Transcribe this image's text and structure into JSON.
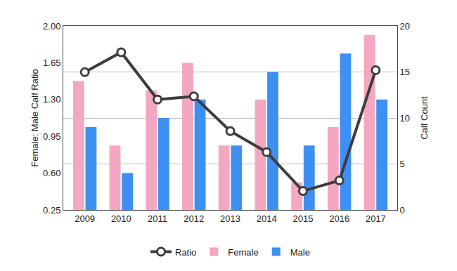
{
  "chart_data": {
    "type": "bar",
    "categories": [
      "2009",
      "2010",
      "2011",
      "2012",
      "2013",
      "2014",
      "2015",
      "2016",
      "2017"
    ],
    "series": [
      {
        "name": "Ratio",
        "type": "line",
        "color": "#3d3d3d",
        "marker": "circle",
        "line_style": "solid",
        "values": [
          1.56,
          1.75,
          1.3,
          1.33,
          1.0,
          0.8,
          0.43,
          0.53,
          1.58
        ]
      },
      {
        "name": "Female",
        "type": "bar",
        "color": "#f4a7c1",
        "axis": "y2",
        "values": [
          14,
          7,
          13,
          16,
          7,
          12,
          3,
          9,
          19
        ]
      },
      {
        "name": "Male",
        "type": "bar",
        "color": "#3d8ff2",
        "axis": "y2",
        "values": [
          9,
          4,
          10,
          12,
          7,
          15,
          7,
          17,
          12
        ]
      }
    ],
    "y_label": "Female: Male Calf Ratio",
    "y2_label": "Calf Count",
    "ylim": [
      0.25,
      2.0
    ],
    "yticks": [
      0.25,
      {
        "value": 0.6,
        "label": "0.60"
      },
      0.95,
      {
        "value": 1.3,
        "label": "1.30"
      },
      1.65,
      {
        "value": 2.0,
        "label": "2.00"
      }
    ],
    "y2lim": [
      0,
      20
    ],
    "y2ticks": [
      0,
      5,
      10,
      15,
      20
    ],
    "grid": true,
    "legend": "bottom"
  }
}
